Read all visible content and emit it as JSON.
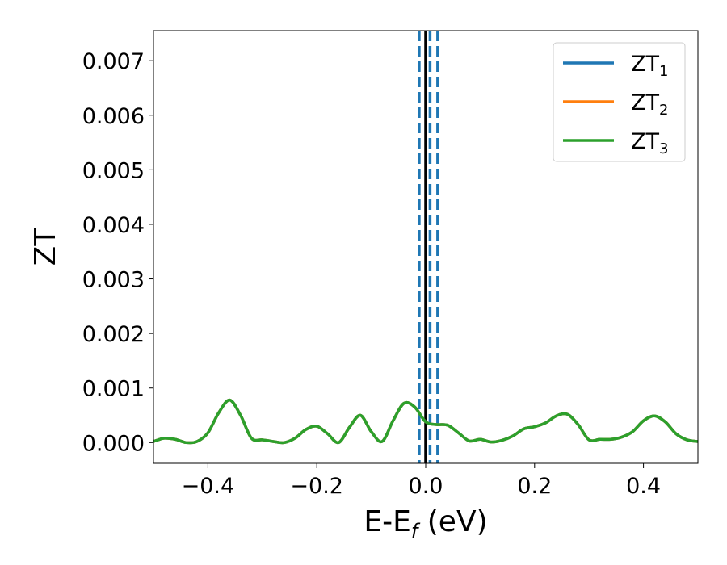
{
  "chart_data": {
    "type": "line",
    "xlabel": "E-E",
    "xlabel_sub": "f",
    "xlabel_unit": " (eV)",
    "ylabel": "ZT",
    "xlim": [
      -0.5,
      0.5
    ],
    "ylim": [
      -0.00038,
      0.00755
    ],
    "xticks": [
      -0.4,
      -0.2,
      0.0,
      0.2,
      0.4
    ],
    "xtick_labels": [
      "−0.4",
      "−0.2",
      "0.0",
      "0.2",
      "0.4"
    ],
    "yticks": [
      0.0,
      0.001,
      0.002,
      0.003,
      0.004,
      0.005,
      0.006,
      0.007
    ],
    "ytick_labels": [
      "0.000",
      "0.001",
      "0.002",
      "0.003",
      "0.004",
      "0.005",
      "0.006",
      "0.007"
    ],
    "grid": false,
    "legend_position": "top-right",
    "x": [
      -0.5,
      -0.48,
      -0.46,
      -0.44,
      -0.42,
      -0.4,
      -0.38,
      -0.36,
      -0.34,
      -0.32,
      -0.3,
      -0.28,
      -0.26,
      -0.24,
      -0.22,
      -0.2,
      -0.18,
      -0.16,
      -0.14,
      -0.12,
      -0.1,
      -0.08,
      -0.06,
      -0.04,
      -0.02,
      0.0,
      0.02,
      0.04,
      0.06,
      0.08,
      0.1,
      0.12,
      0.14,
      0.16,
      0.18,
      0.2,
      0.22,
      0.24,
      0.26,
      0.28,
      0.3,
      0.32,
      0.34,
      0.36,
      0.38,
      0.4,
      0.42,
      0.44,
      0.46,
      0.48,
      0.5
    ],
    "series": [
      {
        "name": "ZT",
        "sub": "1",
        "color": "#1f77b4",
        "values": [
          2e-05,
          8e-05,
          6e-05,
          0.0,
          2e-05,
          0.00018,
          0.00055,
          0.00078,
          0.0005,
          8e-05,
          5e-05,
          2e-05,
          0.0,
          8e-05,
          0.00024,
          0.0003,
          0.00016,
          0.0,
          0.00028,
          0.0005,
          0.0002,
          2e-05,
          0.0004,
          0.00072,
          0.00065,
          0.00038,
          0.00033,
          0.00032,
          0.00018,
          3e-05,
          6e-05,
          1e-05,
          4e-05,
          0.00012,
          0.00025,
          0.00029,
          0.00036,
          0.00049,
          0.00052,
          0.00033,
          5e-05,
          6e-05,
          6e-05,
          0.0001,
          0.0002,
          0.0004,
          0.00049,
          0.00038,
          0.00016,
          5e-05,
          2e-05
        ]
      },
      {
        "name": "ZT",
        "sub": "2",
        "color": "#ff7f0e",
        "values": [
          2e-05,
          8e-05,
          6e-05,
          0.0,
          2e-05,
          0.00018,
          0.00055,
          0.00078,
          0.0005,
          8e-05,
          5e-05,
          2e-05,
          0.0,
          8e-05,
          0.00024,
          0.0003,
          0.00016,
          0.0,
          0.00028,
          0.0005,
          0.0002,
          2e-05,
          0.0004,
          0.00072,
          0.00065,
          0.00038,
          0.00033,
          0.00032,
          0.00018,
          3e-05,
          6e-05,
          1e-05,
          4e-05,
          0.00012,
          0.00025,
          0.00029,
          0.00036,
          0.00049,
          0.00052,
          0.00033,
          5e-05,
          6e-05,
          6e-05,
          0.0001,
          0.0002,
          0.0004,
          0.00049,
          0.00038,
          0.00016,
          5e-05,
          2e-05
        ]
      },
      {
        "name": "ZT",
        "sub": "3",
        "color": "#2ca02c",
        "values": [
          2e-05,
          8e-05,
          6e-05,
          0.0,
          2e-05,
          0.00018,
          0.00055,
          0.00078,
          0.0005,
          8e-05,
          5e-05,
          2e-05,
          0.0,
          8e-05,
          0.00024,
          0.0003,
          0.00016,
          0.0,
          0.00028,
          0.0005,
          0.0002,
          2e-05,
          0.0004,
          0.00072,
          0.00065,
          0.00038,
          0.00033,
          0.00032,
          0.00018,
          3e-05,
          6e-05,
          1e-05,
          4e-05,
          0.00012,
          0.00025,
          0.00029,
          0.00036,
          0.00049,
          0.00052,
          0.00033,
          5e-05,
          6e-05,
          6e-05,
          0.0001,
          0.0002,
          0.0004,
          0.00049,
          0.00038,
          0.00016,
          5e-05,
          2e-05
        ]
      }
    ],
    "vlines": [
      {
        "x": 0.0,
        "style": "solid",
        "color": "#000000"
      },
      {
        "x": -0.012,
        "style": "dashed",
        "color": "#1f77b4"
      },
      {
        "x": 0.008,
        "style": "dashed",
        "color": "#1f77b4"
      },
      {
        "x": 0.022,
        "style": "dashed",
        "color": "#1f77b4"
      }
    ]
  }
}
